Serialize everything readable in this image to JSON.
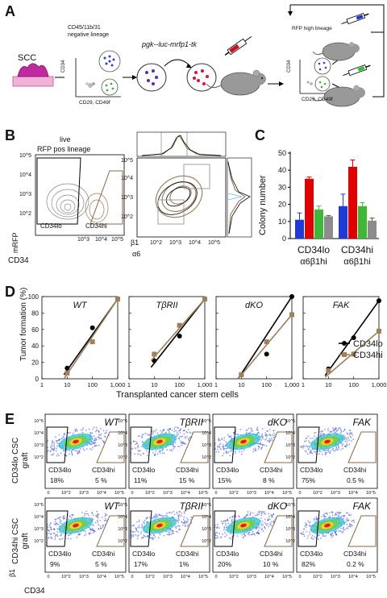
{
  "panels": {
    "A": "A",
    "B": "B",
    "C": "C",
    "D": "D",
    "E": "E"
  },
  "panelA": {
    "scc": "SCC",
    "neg_lineage": "CD45/11b/31\nnegative lineage",
    "cd34": "CD34",
    "cd29_49f": "CD29, CD49f",
    "construct": "pgk--luc-mrfp1-tk",
    "rfp_high": "RFP high lineage",
    "cd34_b": "CD34",
    "cd29_49f_b": "CD29, CD49f"
  },
  "panelB": {
    "live": "live",
    "rfp_pos": "RFP pos lineage",
    "y_axis": "mRFP",
    "x_axis": "CD34",
    "gate_lo": "CD34lo",
    "gate_hi": "CD34hi",
    "y_ticks": [
      "10^5",
      "10^4",
      "10^3",
      "10^2"
    ],
    "x_ticks": [
      "10^3",
      "10^4",
      "10^5"
    ],
    "beta1": "β1",
    "alpha6": "α6",
    "x2_ticks": [
      "10^2",
      "10^3",
      "10^4",
      "10^5"
    ],
    "y2_ticks": [
      "10^5",
      "10^4",
      "10^3",
      "10^2"
    ]
  },
  "chart_data": [
    {
      "type": "bar",
      "panel": "C",
      "ylabel": "Colony number",
      "ylim": [
        0,
        50
      ],
      "yticks": [
        0,
        10,
        20,
        30,
        40,
        50
      ],
      "groups": [
        "CD34lo α6β1hi",
        "CD34hi α6β1hi"
      ],
      "series": [
        {
          "color": "#1f3bd6",
          "values": [
            11,
            19
          ],
          "errors": [
            4,
            7
          ]
        },
        {
          "color": "#e00000",
          "values": [
            35,
            42
          ],
          "errors": [
            1,
            4
          ]
        },
        {
          "color": "#3fb83a",
          "values": [
            17,
            19
          ],
          "errors": [
            2,
            2
          ]
        },
        {
          "color": "#8c8c8c",
          "values": [
            13,
            10.5
          ],
          "errors": [
            0.5,
            1.5
          ]
        }
      ]
    },
    {
      "type": "line",
      "panel": "D",
      "ylabel": "Tumor formation (%)",
      "xlabel": "Transplanted cancer stem cells",
      "ylim": [
        0,
        100
      ],
      "yticks": [
        0,
        20,
        40,
        60,
        80,
        100
      ],
      "xscale": "log",
      "xticks": [
        "1",
        "10",
        "100",
        "1,000"
      ],
      "legend": [
        "CD34lo",
        "CD34hi"
      ],
      "subplots": [
        {
          "title": "WT",
          "CD34lo": [
            [
              10,
              13
            ],
            [
              100,
              62
            ],
            [
              1000,
              97
            ]
          ],
          "CD34hi": [
            [
              10,
              7
            ],
            [
              100,
              45
            ],
            [
              1000,
              97
            ]
          ]
        },
        {
          "title": "TβRII",
          "CD34lo": [
            [
              10,
              22
            ],
            [
              100,
              52
            ],
            [
              1000,
              97
            ]
          ],
          "CD34hi": [
            [
              10,
              30
            ],
            [
              100,
              65
            ],
            [
              1000,
              97
            ]
          ]
        },
        {
          "title": "dKO",
          "CD34lo": [
            [
              10,
              5
            ],
            [
              100,
              30
            ],
            [
              1000,
              100
            ]
          ],
          "CD34hi": [
            [
              10,
              5
            ],
            [
              100,
              45
            ],
            [
              1000,
              78
            ]
          ]
        },
        {
          "title": "FAK",
          "CD34lo": [
            [
              10,
              12
            ],
            [
              100,
              50
            ],
            [
              1000,
              95
            ]
          ],
          "CD34hi": [
            [
              10,
              10
            ],
            [
              100,
              30
            ],
            [
              1000,
              58
            ]
          ]
        }
      ]
    }
  ],
  "panelE": {
    "row1_label": "CD34lo CSC\ngraft",
    "row2_label": "CD34hi CSC\ngraft",
    "ylabel": "β1",
    "xlabel": "CD34",
    "y_ticks": [
      "10^5",
      "10^4",
      "10^3",
      "10^2"
    ],
    "x_ticks": [
      "0",
      "10^2",
      "10^3",
      "10^4",
      "10^5"
    ],
    "plots": [
      {
        "title": "WT",
        "lo": "18%",
        "hi": "5 %"
      },
      {
        "title": "TβRII",
        "lo": "11%",
        "hi": "15 %"
      },
      {
        "title": "dKO",
        "lo": "15%",
        "hi": "8 %"
      },
      {
        "title": "FAK",
        "lo": "75%",
        "hi": "0.5 %"
      },
      {
        "title": "WT",
        "lo": "9%",
        "hi": "5 %"
      },
      {
        "title": "TβRII",
        "lo": "17%",
        "hi": "1%"
      },
      {
        "title": "dKO",
        "lo": "20%",
        "hi": "10 %"
      },
      {
        "title": "FAK",
        "lo": "82%",
        "hi": "0.2 %"
      }
    ],
    "gate_lo": "CD34lo",
    "gate_hi": "CD34hi"
  }
}
